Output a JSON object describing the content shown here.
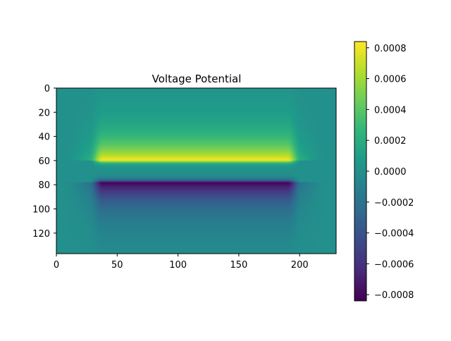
{
  "chart_data": [
    {
      "type": "heatmap",
      "title": "Voltage Potential",
      "xlabel": "",
      "ylabel": "",
      "xlim": [
        0,
        230
      ],
      "ylim": [
        137,
        0
      ],
      "y_inverted": true,
      "x_ticks": [
        0,
        50,
        100,
        150,
        200
      ],
      "y_ticks": [
        0,
        20,
        40,
        60,
        80,
        100,
        120
      ],
      "colormap": "viridis",
      "value_range": [
        -0.00084,
        0.00084
      ],
      "grid": false,
      "features": {
        "positive_plate": {
          "x_start": 30,
          "x_end": 198,
          "y": 60,
          "peak_value": 0.00084
        },
        "negative_plate": {
          "x_start": 30,
          "x_end": 198,
          "y": 78,
          "peak_value": -0.00084
        },
        "background_value": 0.0
      }
    },
    {
      "type": "colorbar",
      "ticks": [
        -0.0008,
        -0.0006,
        -0.0004,
        -0.0002,
        0.0,
        0.0002,
        0.0004,
        0.0006,
        0.0008
      ],
      "tick_labels": [
        "−0.0008",
        "−0.0006",
        "−0.0004",
        "−0.0002",
        "0.0000",
        "0.0002",
        "0.0004",
        "0.0006",
        "0.0008"
      ],
      "range": [
        -0.00084,
        0.00084
      ]
    }
  ],
  "colors": {
    "viridis_stops": [
      "#440154",
      "#482878",
      "#3e4989",
      "#31688e",
      "#26828e",
      "#1f9e89",
      "#35b779",
      "#6ece58",
      "#b5de2b",
      "#fde725"
    ],
    "axis": "#000000",
    "background": "#ffffff"
  }
}
